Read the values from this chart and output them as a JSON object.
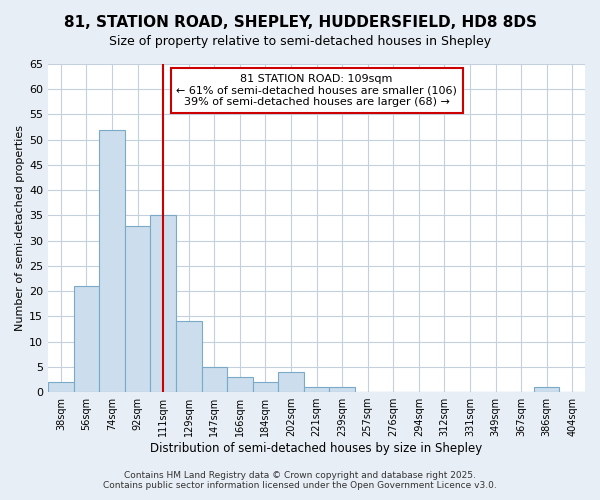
{
  "title_line1": "81, STATION ROAD, SHEPLEY, HUDDERSFIELD, HD8 8DS",
  "title_line2": "Size of property relative to semi-detached houses in Shepley",
  "xlabel": "Distribution of semi-detached houses by size in Shepley",
  "ylabel": "Number of semi-detached properties",
  "bar_labels": [
    "38sqm",
    "56sqm",
    "74sqm",
    "92sqm",
    "111sqm",
    "129sqm",
    "147sqm",
    "166sqm",
    "184sqm",
    "202sqm",
    "221sqm",
    "239sqm",
    "257sqm",
    "276sqm",
    "294sqm",
    "312sqm",
    "331sqm",
    "349sqm",
    "367sqm",
    "386sqm",
    "404sqm"
  ],
  "bar_values": [
    2,
    21,
    52,
    33,
    35,
    14,
    5,
    3,
    2,
    4,
    1,
    1,
    0,
    0,
    0,
    0,
    0,
    0,
    0,
    1,
    0
  ],
  "bar_color": "#ccdded",
  "bar_edge_color": "#7aaac8",
  "vline_x": 4.0,
  "vline_color": "#cc0000",
  "annotation_title": "81 STATION ROAD: 109sqm",
  "annotation_line1": "← 61% of semi-detached houses are smaller (106)",
  "annotation_line2": "39% of semi-detached houses are larger (68) →",
  "annotation_box_color": "#cc0000",
  "ylim": [
    0,
    65
  ],
  "yticks": [
    0,
    5,
    10,
    15,
    20,
    25,
    30,
    35,
    40,
    45,
    50,
    55,
    60,
    65
  ],
  "footer_line1": "Contains HM Land Registry data © Crown copyright and database right 2025.",
  "footer_line2": "Contains public sector information licensed under the Open Government Licence v3.0.",
  "bg_color": "#e8eef5",
  "plot_bg_color": "#ffffff",
  "grid_color": "#c5d0de"
}
